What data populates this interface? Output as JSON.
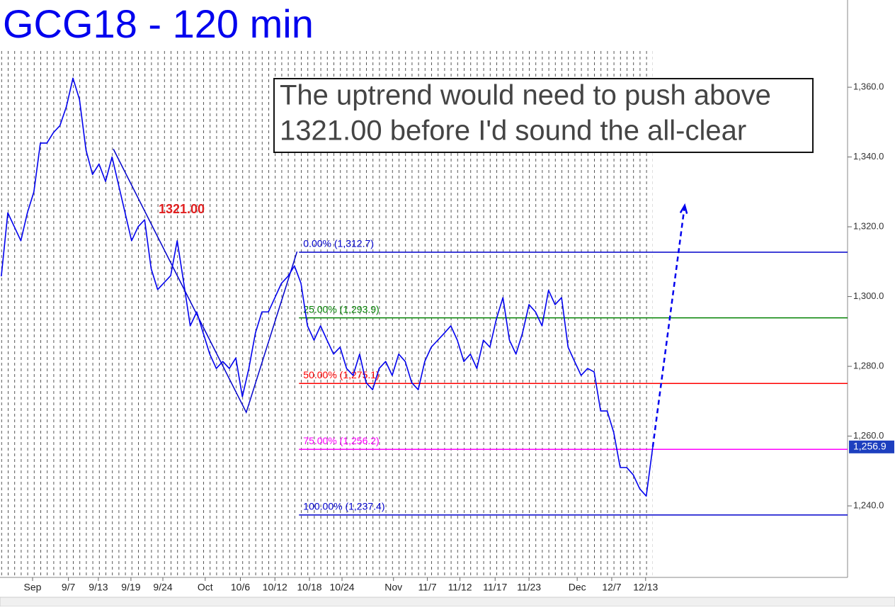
{
  "chart_data": {
    "type": "line",
    "title": "GCG18 - 120 min",
    "series": [
      {
        "color": "#0000ee",
        "x": [
          0,
          1,
          2,
          3,
          4,
          5,
          6,
          7,
          8,
          9,
          10,
          11,
          12,
          13,
          14,
          15,
          16,
          17,
          18,
          19,
          20,
          21,
          22,
          23,
          24,
          25,
          26,
          27,
          28,
          29,
          30,
          31,
          32,
          33,
          34,
          35,
          36,
          37,
          38,
          39,
          40,
          41,
          42,
          43,
          44,
          45,
          46,
          47,
          48,
          49,
          50,
          51,
          52,
          53,
          54,
          55,
          56,
          57,
          58,
          59,
          60,
          61,
          62,
          63,
          64,
          65,
          66,
          67,
          68,
          69,
          70,
          71,
          72,
          73,
          74,
          75,
          76,
          77,
          78,
          79,
          80,
          81,
          82,
          83,
          84,
          85,
          86,
          87,
          88,
          89,
          90,
          91,
          92,
          93,
          94,
          95,
          96,
          97,
          98,
          99,
          100
        ],
        "values": [
          1305.8,
          1324,
          1320,
          1316,
          1324,
          1330,
          1344,
          1344,
          1347,
          1349,
          1354.5,
          1362.6,
          1356.5,
          1342,
          1335,
          1338,
          1333,
          1340,
          1332,
          1324,
          1316,
          1320,
          1322,
          1308,
          1302,
          1304,
          1306,
          1316,
          1304,
          1291.6,
          1295.6,
          1289.5,
          1283.5,
          1279.4,
          1281.4,
          1279.4,
          1282.4,
          1271.3,
          1279.4,
          1289.5,
          1295.6,
          1295.6,
          1299.7,
          1303.8,
          1305.8,
          1308.8,
          1303.8,
          1291.6,
          1287.5,
          1291.6,
          1287.5,
          1283.5,
          1285.5,
          1279.4,
          1277.4,
          1283.5,
          1275.3,
          1273.3,
          1279.4,
          1281.4,
          1277.4,
          1283.5,
          1281.4,
          1275.3,
          1273.3,
          1281.4,
          1285.5,
          1287.5,
          1289.5,
          1291.6,
          1287.5,
          1281.4,
          1283.5,
          1279.4,
          1287.5,
          1285.5,
          1293.6,
          1299.7,
          1287.5,
          1283.5,
          1289.5,
          1297.7,
          1295.6,
          1291.6,
          1301.8,
          1297.7,
          1299.7,
          1285.5,
          1281.4,
          1277.4,
          1279.4,
          1278.4,
          1267.2,
          1267.2,
          1261.1,
          1251,
          1251,
          1248.9,
          1244.9,
          1242.8,
          1256.9
        ]
      }
    ],
    "xlim": [
      -0.2,
      129.9
    ],
    "ylim": [
      1219.5,
      1385
    ],
    "xticks": [
      {
        "value": 4.8,
        "label": "Sep"
      },
      {
        "value": 10.3,
        "label": "9/7"
      },
      {
        "value": 14.9,
        "label": "9/13"
      },
      {
        "value": 19.9,
        "label": "9/19"
      },
      {
        "value": 24.8,
        "label": "9/24"
      },
      {
        "value": 31.3,
        "label": "Oct"
      },
      {
        "value": 36.7,
        "label": "10/6"
      },
      {
        "value": 42,
        "label": "10/12"
      },
      {
        "value": 47.3,
        "label": "10/18"
      },
      {
        "value": 52.3,
        "label": "10/24"
      },
      {
        "value": 60.2,
        "label": "Nov"
      },
      {
        "value": 65.4,
        "label": "11/7"
      },
      {
        "value": 70.4,
        "label": "11/12"
      },
      {
        "value": 75.8,
        "label": "11/17"
      },
      {
        "value": 81,
        "label": "11/23"
      },
      {
        "value": 88.4,
        "label": "Dec"
      },
      {
        "value": 93.7,
        "label": "12/7"
      },
      {
        "value": 98.9,
        "label": "12/13"
      }
    ],
    "yticks": [
      {
        "value": 1240,
        "label": "1,240.0"
      },
      {
        "value": 1260,
        "label": "1,260.0"
      },
      {
        "value": 1280,
        "label": "1,280.0"
      },
      {
        "value": 1300,
        "label": "1,300.0"
      },
      {
        "value": 1320,
        "label": "1,320.0"
      },
      {
        "value": 1340,
        "label": "1,340.0"
      },
      {
        "value": 1360,
        "label": "1,360.0"
      }
    ],
    "fib_start_x": 45.7,
    "fib_levels": [
      {
        "label": "0.00% (1,312.7)",
        "value": 1312.7,
        "color": "#0000cc"
      },
      {
        "label": "25.00% (1,293.9)",
        "value": 1293.9,
        "color": "#008000"
      },
      {
        "label": "50.00% (1,275.1)",
        "value": 1275.1,
        "color": "#ff0000"
      },
      {
        "label": "75.00% (1,256.2)",
        "value": 1256.2,
        "color": "#ff00ff"
      },
      {
        "label": "100.00% (1,237.4)",
        "value": 1237.4,
        "color": "#0000cc"
      }
    ],
    "abc_line": {
      "x": [
        17.2,
        37.6,
        45.4
      ],
      "values": [
        1342.3,
        1266.8,
        1312.9
      ]
    },
    "projection": {
      "x": [
        100,
        104.9
      ],
      "values": [
        1256.9,
        1326.1
      ]
    },
    "last_price": {
      "value": 1256.9,
      "label": "1,256.9"
    },
    "level_annotation": "1321.00",
    "annotation": [
      "The uptrend would need to push above",
      "1321.00 before I'd sound the all-clear"
    ]
  }
}
